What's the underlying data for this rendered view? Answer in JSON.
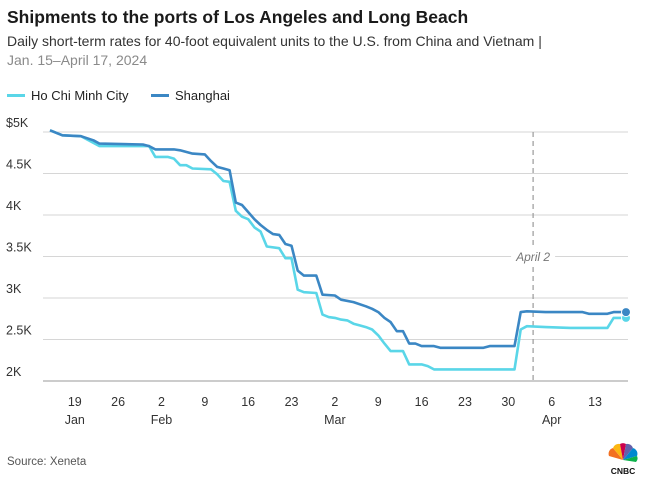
{
  "chart_data": {
    "type": "line",
    "title": "Shipments to the ports of Los Angeles and Long Beach",
    "subtitle": "Daily short-term rates for 40-foot equivalent units to the U.S. from China and Vietnam |",
    "subtitle2": "Jan. 15–April 17, 2024",
    "xlabel": "",
    "ylabel": "",
    "ylim": [
      2000,
      5000
    ],
    "y_ticks": [
      {
        "value": 5000,
        "label": "$5K"
      },
      {
        "value": 4500,
        "label": "4.5K"
      },
      {
        "value": 4000,
        "label": "4K"
      },
      {
        "value": 3500,
        "label": "3.5K"
      },
      {
        "value": 3000,
        "label": "3K"
      },
      {
        "value": 2500,
        "label": "2.5K"
      },
      {
        "value": 2000,
        "label": "2K"
      }
    ],
    "x_unit": "day index (0 = Jan 15)",
    "xlim": [
      0,
      93
    ],
    "x_ticks": [
      {
        "day": 4,
        "label": "19"
      },
      {
        "day": 11,
        "label": "26"
      },
      {
        "day": 18,
        "label": "2"
      },
      {
        "day": 25,
        "label": "9"
      },
      {
        "day": 32,
        "label": "16"
      },
      {
        "day": 39,
        "label": "23"
      },
      {
        "day": 46,
        "label": "2"
      },
      {
        "day": 53,
        "label": "9"
      },
      {
        "day": 60,
        "label": "16"
      },
      {
        "day": 67,
        "label": "23"
      },
      {
        "day": 74,
        "label": "30"
      },
      {
        "day": 81,
        "label": "6"
      },
      {
        "day": 88,
        "label": "13"
      }
    ],
    "month_labels": [
      {
        "day": 4,
        "label": "Jan"
      },
      {
        "day": 18,
        "label": "Feb"
      },
      {
        "day": 46,
        "label": "Mar"
      },
      {
        "day": 81,
        "label": "Apr"
      }
    ],
    "annotation": {
      "day": 78,
      "label": "April 2"
    },
    "series": [
      {
        "name": "Ho Chi Minh City",
        "color": "#5ad6e8",
        "points": [
          [
            0,
            5020
          ],
          [
            2,
            4960
          ],
          [
            5,
            4950
          ],
          [
            7,
            4870
          ],
          [
            8,
            4830
          ],
          [
            15,
            4830
          ],
          [
            16,
            4830
          ],
          [
            17,
            4700
          ],
          [
            19,
            4700
          ],
          [
            20,
            4680
          ],
          [
            21,
            4600
          ],
          [
            22,
            4600
          ],
          [
            23,
            4560
          ],
          [
            26,
            4550
          ],
          [
            27,
            4490
          ],
          [
            28,
            4410
          ],
          [
            29,
            4400
          ],
          [
            30,
            4050
          ],
          [
            31,
            3980
          ],
          [
            32,
            3950
          ],
          [
            33,
            3850
          ],
          [
            34,
            3800
          ],
          [
            35,
            3620
          ],
          [
            37,
            3600
          ],
          [
            38,
            3480
          ],
          [
            39,
            3480
          ],
          [
            40,
            3100
          ],
          [
            41,
            3070
          ],
          [
            43,
            3060
          ],
          [
            44,
            2800
          ],
          [
            45,
            2770
          ],
          [
            46,
            2760
          ],
          [
            47,
            2740
          ],
          [
            48,
            2730
          ],
          [
            49,
            2690
          ],
          [
            50,
            2670
          ],
          [
            51,
            2650
          ],
          [
            52,
            2620
          ],
          [
            53,
            2550
          ],
          [
            54,
            2450
          ],
          [
            55,
            2360
          ],
          [
            57,
            2360
          ],
          [
            58,
            2200
          ],
          [
            60,
            2200
          ],
          [
            61,
            2180
          ],
          [
            62,
            2140
          ],
          [
            75,
            2140
          ],
          [
            76,
            2620
          ],
          [
            77,
            2660
          ],
          [
            80,
            2650
          ],
          [
            84,
            2640
          ],
          [
            90,
            2640
          ],
          [
            91,
            2760
          ],
          [
            93,
            2760
          ]
        ]
      },
      {
        "name": "Shanghai",
        "color": "#3b87c4",
        "points": [
          [
            0,
            5020
          ],
          [
            2,
            4960
          ],
          [
            5,
            4950
          ],
          [
            7,
            4900
          ],
          [
            8,
            4860
          ],
          [
            15,
            4850
          ],
          [
            16,
            4830
          ],
          [
            17,
            4790
          ],
          [
            20,
            4790
          ],
          [
            21,
            4780
          ],
          [
            23,
            4740
          ],
          [
            25,
            4730
          ],
          [
            26,
            4650
          ],
          [
            27,
            4580
          ],
          [
            28,
            4560
          ],
          [
            29,
            4540
          ],
          [
            30,
            4150
          ],
          [
            31,
            4120
          ],
          [
            33,
            3950
          ],
          [
            34,
            3880
          ],
          [
            35,
            3820
          ],
          [
            36,
            3770
          ],
          [
            37,
            3760
          ],
          [
            38,
            3650
          ],
          [
            39,
            3630
          ],
          [
            40,
            3330
          ],
          [
            41,
            3270
          ],
          [
            43,
            3270
          ],
          [
            44,
            3040
          ],
          [
            46,
            3030
          ],
          [
            47,
            2980
          ],
          [
            49,
            2950
          ],
          [
            51,
            2900
          ],
          [
            52,
            2870
          ],
          [
            53,
            2830
          ],
          [
            54,
            2760
          ],
          [
            55,
            2710
          ],
          [
            56,
            2600
          ],
          [
            57,
            2600
          ],
          [
            58,
            2450
          ],
          [
            59,
            2450
          ],
          [
            60,
            2420
          ],
          [
            62,
            2420
          ],
          [
            63,
            2400
          ],
          [
            70,
            2400
          ],
          [
            71,
            2420
          ],
          [
            75,
            2420
          ],
          [
            76,
            2830
          ],
          [
            77,
            2840
          ],
          [
            80,
            2830
          ],
          [
            86,
            2830
          ],
          [
            87,
            2810
          ],
          [
            90,
            2810
          ],
          [
            91,
            2830
          ],
          [
            93,
            2830
          ]
        ]
      }
    ]
  },
  "footer": {
    "source": "Source: Xeneta",
    "logo_text": "CNBC"
  }
}
